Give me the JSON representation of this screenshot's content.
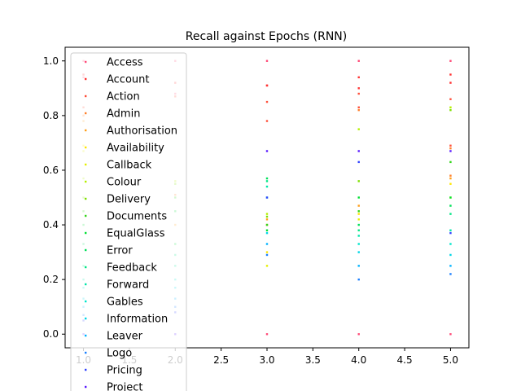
{
  "chart_data": {
    "type": "scatter",
    "title": "Recall against Epochs (RNN)",
    "xlabel": "",
    "ylabel": "",
    "xlim": [
      0.8,
      5.2
    ],
    "ylim": [
      -0.05,
      1.05
    ],
    "xticks": [
      "1.0",
      "1.5",
      "2.0",
      "2.5",
      "3.0",
      "3.5",
      "4.0",
      "4.5",
      "5.0"
    ],
    "yticks": [
      "0.0",
      "0.2",
      "0.4",
      "0.6",
      "0.8",
      "1.0"
    ],
    "grid": false,
    "legend_placement": "upper-left",
    "series": [
      {
        "name": "Access",
        "color": "#ff4d7a",
        "points": [
          [
            1,
            1.0
          ],
          [
            1,
            0.94
          ],
          [
            2,
            1.0
          ],
          [
            2,
            0.88
          ],
          [
            3,
            1.0
          ],
          [
            3,
            0.0
          ],
          [
            4,
            1.0
          ],
          [
            4,
            0.0
          ],
          [
            5,
            1.0
          ],
          [
            5,
            0.0
          ]
        ]
      },
      {
        "name": "Account",
        "color": "#ff3333",
        "points": [
          [
            1,
            0.95
          ],
          [
            2,
            0.92
          ],
          [
            3,
            0.91
          ],
          [
            3,
            0.91
          ],
          [
            4,
            0.94
          ],
          [
            4,
            0.9
          ],
          [
            5,
            0.95
          ],
          [
            5,
            0.92
          ]
        ]
      },
      {
        "name": "Action",
        "color": "#ff4f3a",
        "points": [
          [
            1,
            0.83
          ],
          [
            2,
            0.87
          ],
          [
            3,
            0.85
          ],
          [
            3,
            0.78
          ],
          [
            4,
            0.88
          ],
          [
            4,
            0.83
          ],
          [
            5,
            0.86
          ],
          [
            5,
            0.69
          ]
        ]
      },
      {
        "name": "Admin",
        "color": "#ff7f2a",
        "points": [
          [
            1,
            0.8
          ],
          [
            2,
            0.51
          ],
          [
            3,
            0.4
          ],
          [
            4,
            0.82
          ],
          [
            5,
            0.68
          ],
          [
            5,
            0.58
          ]
        ]
      },
      {
        "name": "Authorisation",
        "color": "#ff9f1a",
        "points": [
          [
            1,
            0.78
          ],
          [
            2,
            0.4
          ],
          [
            3,
            0.42
          ],
          [
            4,
            0.47
          ],
          [
            5,
            0.57
          ]
        ]
      },
      {
        "name": "Availability",
        "color": "#ffe600",
        "points": [
          [
            1,
            0.69
          ],
          [
            2,
            0.33
          ],
          [
            3,
            0.3
          ],
          [
            4,
            0.44
          ],
          [
            5,
            0.55
          ]
        ]
      },
      {
        "name": "Callback",
        "color": "#e6f000",
        "points": [
          [
            1,
            0.67
          ],
          [
            2,
            0.25
          ],
          [
            3,
            0.25
          ],
          [
            4,
            0.42
          ],
          [
            5,
            0.5
          ]
        ]
      },
      {
        "name": "Colour",
        "color": "#b5f000",
        "points": [
          [
            1,
            0.57
          ],
          [
            2,
            0.56
          ],
          [
            3,
            0.44
          ],
          [
            4,
            0.75
          ],
          [
            5,
            0.83
          ]
        ]
      },
      {
        "name": "Delivery",
        "color": "#7fe000",
        "points": [
          [
            1,
            0.5
          ],
          [
            2,
            0.55
          ],
          [
            3,
            0.43
          ],
          [
            4,
            0.56
          ],
          [
            5,
            0.82
          ]
        ]
      },
      {
        "name": "Documents",
        "color": "#33d61a",
        "points": [
          [
            1,
            0.45
          ],
          [
            2,
            0.5
          ],
          [
            3,
            0.4
          ],
          [
            4,
            0.45
          ],
          [
            5,
            0.63
          ]
        ]
      },
      {
        "name": "EqualGlass",
        "color": "#00e033",
        "points": [
          [
            1,
            0.4
          ],
          [
            2,
            0.45
          ],
          [
            3,
            0.38
          ],
          [
            4,
            0.5
          ],
          [
            5,
            0.5
          ]
        ]
      },
      {
        "name": "Error",
        "color": "#00e05a",
        "points": [
          [
            1,
            0.33
          ],
          [
            2,
            0.33
          ],
          [
            3,
            0.57
          ],
          [
            4,
            0.4
          ],
          [
            5,
            0.47
          ]
        ]
      },
      {
        "name": "Feedback",
        "color": "#00e684",
        "points": [
          [
            1,
            0.25
          ],
          [
            2,
            0.29
          ],
          [
            3,
            0.56
          ],
          [
            4,
            0.38
          ],
          [
            5,
            0.44
          ]
        ]
      },
      {
        "name": "Forward",
        "color": "#00e6aa",
        "points": [
          [
            1,
            0.2
          ],
          [
            2,
            0.25
          ],
          [
            3,
            0.54
          ],
          [
            4,
            0.36
          ],
          [
            5,
            0.38
          ]
        ]
      },
      {
        "name": "Gables",
        "color": "#00e6cc",
        "points": [
          [
            1,
            0.17
          ],
          [
            2,
            0.2
          ],
          [
            3,
            0.5
          ],
          [
            4,
            0.33
          ],
          [
            5,
            0.33
          ]
        ]
      },
      {
        "name": "Information",
        "color": "#00d6e6",
        "points": [
          [
            1,
            0.13
          ],
          [
            2,
            0.17
          ],
          [
            3,
            0.37
          ],
          [
            4,
            0.3
          ],
          [
            5,
            0.29
          ]
        ]
      },
      {
        "name": "Leaver",
        "color": "#00b3ff",
        "points": [
          [
            1,
            0.1
          ],
          [
            2,
            0.13
          ],
          [
            3,
            0.33
          ],
          [
            4,
            0.25
          ],
          [
            5,
            0.25
          ]
        ]
      },
      {
        "name": "Logo",
        "color": "#1a7fff",
        "points": [
          [
            1,
            0.07
          ],
          [
            2,
            0.1
          ],
          [
            3,
            0.29
          ],
          [
            4,
            0.2
          ],
          [
            5,
            0.22
          ]
        ]
      },
      {
        "name": "Pricing",
        "color": "#3344ff",
        "points": [
          [
            1,
            0.05
          ],
          [
            2,
            0.08
          ],
          [
            3,
            0.5
          ],
          [
            4,
            0.63
          ],
          [
            5,
            0.37
          ]
        ]
      },
      {
        "name": "Project",
        "color": "#5a1aff",
        "points": [
          [
            1,
            0.0
          ],
          [
            2,
            0.0
          ],
          [
            3,
            0.67
          ],
          [
            4,
            0.67
          ],
          [
            5,
            0.67
          ]
        ]
      }
    ]
  }
}
